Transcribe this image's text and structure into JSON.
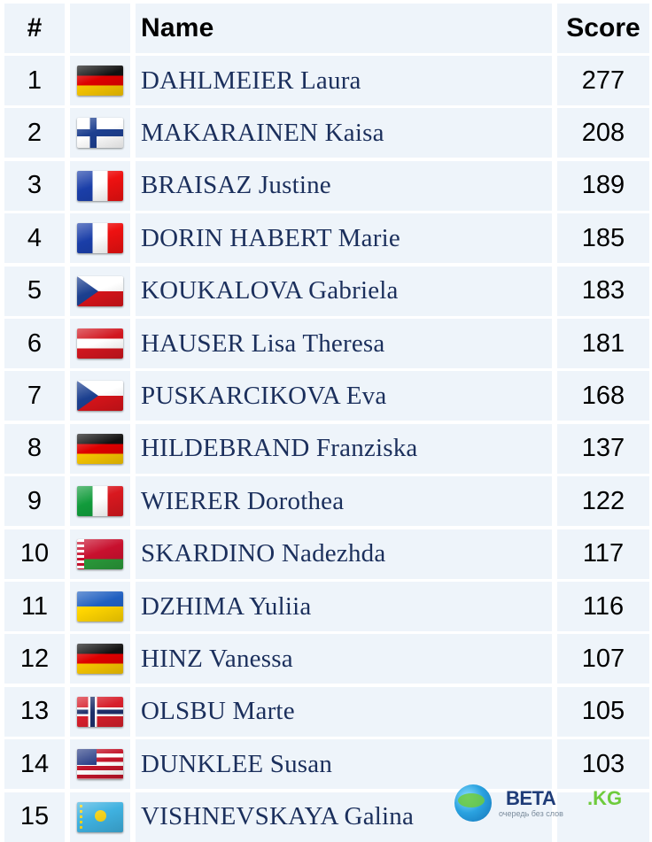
{
  "headers": {
    "rank": "#",
    "flag": "",
    "name": "Name",
    "score": "Score"
  },
  "rows": [
    {
      "rank": "1",
      "flag": "germany-flag-icon",
      "name": "DAHLMEIER Laura",
      "score": "277"
    },
    {
      "rank": "2",
      "flag": "finland-flag-icon",
      "name": "MAKARAINEN Kaisa",
      "score": "208"
    },
    {
      "rank": "3",
      "flag": "france-flag-icon",
      "name": "BRAISAZ Justine",
      "score": "189"
    },
    {
      "rank": "4",
      "flag": "france-flag-icon",
      "name": "DORIN HABERT Marie",
      "score": "185"
    },
    {
      "rank": "5",
      "flag": "czech-republic-flag-icon",
      "name": "KOUKALOVA Gabriela",
      "score": "183"
    },
    {
      "rank": "6",
      "flag": "austria-flag-icon",
      "name": "HAUSER Lisa Theresa",
      "score": "181"
    },
    {
      "rank": "7",
      "flag": "czech-republic-flag-icon",
      "name": "PUSKARCIKOVA Eva",
      "score": "168"
    },
    {
      "rank": "8",
      "flag": "germany-flag-icon",
      "name": "HILDEBRAND Franziska",
      "score": "137"
    },
    {
      "rank": "9",
      "flag": "italy-flag-icon",
      "name": "WIERER Dorothea",
      "score": "122"
    },
    {
      "rank": "10",
      "flag": "belarus-flag-icon",
      "name": "SKARDINO Nadezhda",
      "score": "117"
    },
    {
      "rank": "11",
      "flag": "ukraine-flag-icon",
      "name": "DZHIMA Yuliia",
      "score": "116"
    },
    {
      "rank": "12",
      "flag": "germany-flag-icon",
      "name": "HINZ Vanessa",
      "score": "107"
    },
    {
      "rank": "13",
      "flag": "norway-flag-icon",
      "name": "OLSBU Marte",
      "score": "105"
    },
    {
      "rank": "14",
      "flag": "usa-flag-icon",
      "name": "DUNKLEE Susan",
      "score": "103"
    },
    {
      "rank": "15",
      "flag": "kazakhstan-flag-icon",
      "name": "VISHNEVSKAYA Galina",
      "score": ""
    }
  ],
  "watermark": {
    "brand": "BETA",
    "suffix": ".KG",
    "tagline": "очередь без слов"
  },
  "colors": {
    "cell_bg": "#eef4fa",
    "name_text": "#1b2f5c"
  }
}
